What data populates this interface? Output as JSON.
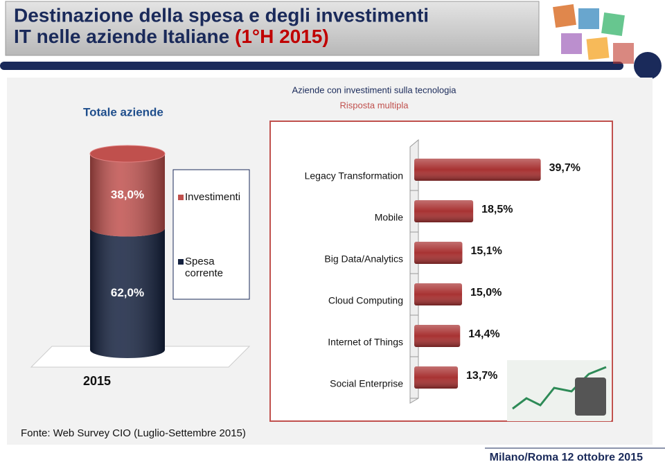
{
  "title": [
    "Destinazione della spesa e degli investimenti",
    "IT nelle aziende Italiane"
  ],
  "title_highlight": "(1°H 2015)",
  "source": "Fonte: Web Survey CIO (Luglio-Settembre 2015)",
  "footer": "Milano/Roma 12 ottobre 2015",
  "chart_data": [
    {
      "type": "stacked-bar",
      "title": "Totale aziende",
      "categories": [
        "2015"
      ],
      "series": [
        {
          "name": "Spesa corrente",
          "color": "#14213f",
          "values": [
            62.0
          ],
          "value_labels": [
            "62,0%"
          ]
        },
        {
          "name": "Investimenti",
          "color": "#c0504d",
          "values": [
            38.0
          ],
          "value_labels": [
            "38,0%"
          ]
        }
      ],
      "ylim": [
        0,
        100
      ]
    },
    {
      "type": "hbar",
      "title": "Aziende con investimenti sulla tecnologia",
      "subtitle": "Risposta multipla",
      "categories": [
        "Legacy Transformation",
        "Mobile",
        "Big Data/Analytics",
        "Cloud Computing",
        "Internet of Things",
        "Social Enterprise"
      ],
      "values": [
        39.7,
        18.5,
        15.1,
        15.0,
        14.4,
        13.7
      ],
      "value_labels": [
        "39,7%",
        "18,5%",
        "15,1%",
        "15,0%",
        "14,4%",
        "13,7%"
      ],
      "color": "#a83232",
      "xlim": [
        0,
        40
      ]
    }
  ]
}
